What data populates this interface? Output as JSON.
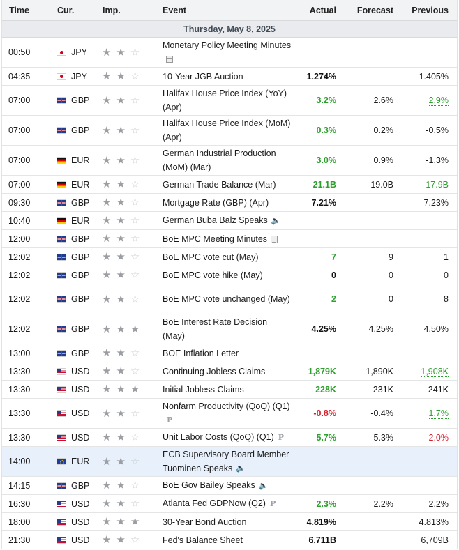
{
  "header": {
    "time": "Time",
    "currency": "Cur.",
    "importance": "Imp.",
    "event": "Event",
    "actual": "Actual",
    "forecast": "Forecast",
    "previous": "Previous"
  },
  "date_label": "Thursday, May 8, 2025",
  "rows": [
    {
      "time": "00:50",
      "cur": "JPY",
      "flag": "jp",
      "stars": 2,
      "event": "Monetary Policy Meeting Minutes",
      "icon": "doc",
      "actual": "",
      "actual_style": "",
      "forecast": "",
      "previous": "",
      "previous_style": ""
    },
    {
      "time": "04:35",
      "cur": "JPY",
      "flag": "jp",
      "stars": 2,
      "event": "10-Year JGB Auction",
      "icon": "",
      "actual": "1.274%",
      "actual_style": "bold",
      "forecast": "",
      "previous": "1.405%",
      "previous_style": ""
    },
    {
      "time": "07:00",
      "cur": "GBP",
      "flag": "gb",
      "stars": 2,
      "event": "Halifax House Price Index (YoY) (Apr)",
      "icon": "",
      "actual": "3.2%",
      "actual_style": "green",
      "forecast": "2.6%",
      "previous": "2.9%",
      "previous_style": "ul-green"
    },
    {
      "time": "07:00",
      "cur": "GBP",
      "flag": "gb",
      "stars": 2,
      "event": "Halifax House Price Index (MoM) (Apr)",
      "icon": "",
      "actual": "0.3%",
      "actual_style": "green",
      "forecast": "0.2%",
      "previous": "-0.5%",
      "previous_style": ""
    },
    {
      "time": "07:00",
      "cur": "EUR",
      "flag": "de",
      "stars": 2,
      "event": "German Industrial Production (MoM) (Mar)",
      "icon": "",
      "actual": "3.0%",
      "actual_style": "green",
      "forecast": "0.9%",
      "previous": "-1.3%",
      "previous_style": ""
    },
    {
      "time": "07:00",
      "cur": "EUR",
      "flag": "de",
      "stars": 2,
      "event": "German Trade Balance (Mar)",
      "icon": "",
      "actual": "21.1B",
      "actual_style": "green",
      "forecast": "19.0B",
      "previous": "17.9B",
      "previous_style": "ul-green"
    },
    {
      "time": "09:30",
      "cur": "GBP",
      "flag": "gb",
      "stars": 2,
      "event": "Mortgage Rate (GBP) (Apr)",
      "icon": "",
      "actual": "7.21%",
      "actual_style": "bold",
      "forecast": "",
      "previous": "7.23%",
      "previous_style": ""
    },
    {
      "time": "10:40",
      "cur": "EUR",
      "flag": "de",
      "stars": 2,
      "event": "German Buba Balz Speaks",
      "icon": "speaker",
      "actual": "",
      "actual_style": "",
      "forecast": "",
      "previous": "",
      "previous_style": ""
    },
    {
      "time": "12:00",
      "cur": "GBP",
      "flag": "gb",
      "stars": 2,
      "event": "BoE MPC Meeting Minutes",
      "icon": "doc",
      "actual": "",
      "actual_style": "",
      "forecast": "",
      "previous": "",
      "previous_style": ""
    },
    {
      "time": "12:02",
      "cur": "GBP",
      "flag": "gb",
      "stars": 2,
      "event": "BoE MPC vote cut (May)",
      "icon": "",
      "actual": "7",
      "actual_style": "green",
      "forecast": "9",
      "previous": "1",
      "previous_style": ""
    },
    {
      "time": "12:02",
      "cur": "GBP",
      "flag": "gb",
      "stars": 2,
      "event": "BoE MPC vote hike (May)",
      "icon": "",
      "actual": "0",
      "actual_style": "bold",
      "forecast": "0",
      "previous": "0",
      "previous_style": ""
    },
    {
      "time": "12:02",
      "cur": "GBP",
      "flag": "gb",
      "stars": 2,
      "event": "BoE MPC vote unchanged (May)",
      "icon": "",
      "actual": "2",
      "actual_style": "green",
      "forecast": "0",
      "previous": "8",
      "previous_style": ""
    },
    {
      "time": "12:02",
      "cur": "GBP",
      "flag": "gb",
      "stars": 3,
      "event": "BoE Interest Rate Decision (May)",
      "icon": "",
      "actual": "4.25%",
      "actual_style": "bold",
      "forecast": "4.25%",
      "previous": "4.50%",
      "previous_style": ""
    },
    {
      "time": "13:00",
      "cur": "GBP",
      "flag": "gb",
      "stars": 2,
      "event": "BOE Inflation Letter",
      "icon": "",
      "actual": "",
      "actual_style": "",
      "forecast": "",
      "previous": "",
      "previous_style": ""
    },
    {
      "time": "13:30",
      "cur": "USD",
      "flag": "us",
      "stars": 2,
      "event": "Continuing Jobless Claims",
      "icon": "",
      "actual": "1,879K",
      "actual_style": "green",
      "forecast": "1,890K",
      "previous": "1,908K",
      "previous_style": "ul-green"
    },
    {
      "time": "13:30",
      "cur": "USD",
      "flag": "us",
      "stars": 3,
      "event": "Initial Jobless Claims",
      "icon": "",
      "actual": "228K",
      "actual_style": "green",
      "forecast": "231K",
      "previous": "241K",
      "previous_style": ""
    },
    {
      "time": "13:30",
      "cur": "USD",
      "flag": "us",
      "stars": 2,
      "event": "Nonfarm Productivity (QoQ) (Q1)",
      "icon": "p",
      "actual": "-0.8%",
      "actual_style": "red",
      "forecast": "-0.4%",
      "previous": "1.7%",
      "previous_style": "ul-green"
    },
    {
      "time": "13:30",
      "cur": "USD",
      "flag": "us",
      "stars": 2,
      "event": "Unit Labor Costs (QoQ) (Q1)",
      "icon": "p",
      "actual": "5.7%",
      "actual_style": "green",
      "forecast": "5.3%",
      "previous": "2.0%",
      "previous_style": "ul-red"
    },
    {
      "time": "14:00",
      "cur": "EUR",
      "flag": "eu",
      "stars": 2,
      "event": "ECB Supervisory Board Member Tuominen Speaks",
      "icon": "speaker",
      "actual": "",
      "actual_style": "",
      "forecast": "",
      "previous": "",
      "previous_style": "",
      "highlight": true
    },
    {
      "time": "14:15",
      "cur": "GBP",
      "flag": "gb",
      "stars": 2,
      "event": "BoE Gov Bailey Speaks",
      "icon": "speaker",
      "actual": "",
      "actual_style": "",
      "forecast": "",
      "previous": "",
      "previous_style": ""
    },
    {
      "time": "16:30",
      "cur": "USD",
      "flag": "us",
      "stars": 2,
      "event": "Atlanta Fed GDPNow (Q2)",
      "icon": "p",
      "actual": "2.3%",
      "actual_style": "green",
      "forecast": "2.2%",
      "previous": "2.2%",
      "previous_style": ""
    },
    {
      "time": "18:00",
      "cur": "USD",
      "flag": "us",
      "stars": 3,
      "event": "30-Year Bond Auction",
      "icon": "",
      "actual": "4.819%",
      "actual_style": "bold",
      "forecast": "",
      "previous": "4.813%",
      "previous_style": ""
    },
    {
      "time": "21:30",
      "cur": "USD",
      "flag": "us",
      "stars": 2,
      "event": "Fed's Balance Sheet",
      "icon": "",
      "actual": "6,711B",
      "actual_style": "bold",
      "forecast": "",
      "previous": "6,709B",
      "previous_style": ""
    }
  ]
}
